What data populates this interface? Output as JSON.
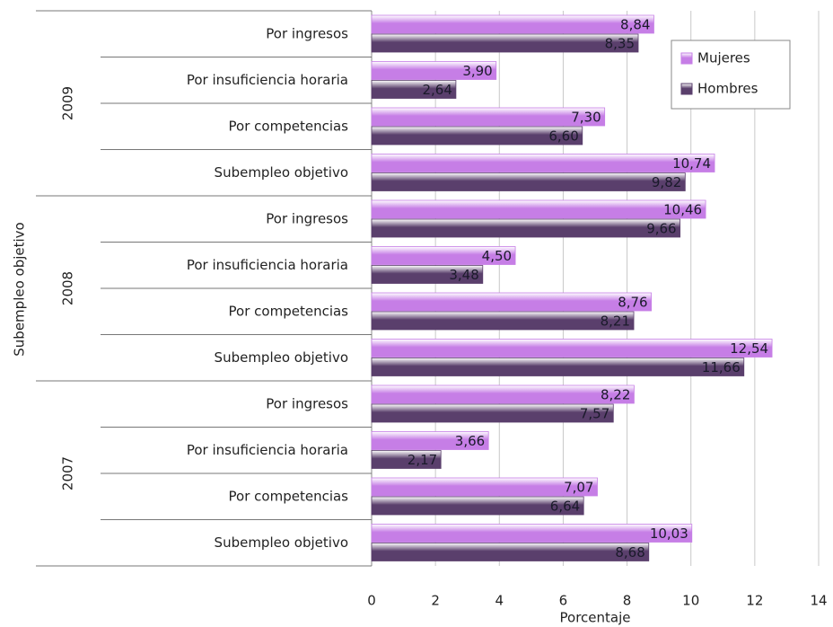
{
  "chart_data": {
    "type": "hbar",
    "y_label": "Subempleo objetivo",
    "x_label": "Porcentaje",
    "groups": [
      "2009",
      "2008",
      "2007"
    ],
    "categories": [
      "Por ingresos",
      "Por insuficiencia horaria",
      "Por competencias",
      "Subempleo objetivo",
      "Por ingresos",
      "Por insuficiencia horaria",
      "Por competencias",
      "Subempleo objetivo",
      "Por ingresos",
      "Por insuficiencia horaria",
      "Por competencias",
      "Subempleo objetivo"
    ],
    "series": [
      {
        "name": "Mujeres",
        "color": "#c67ee6",
        "values": [
          8.84,
          3.9,
          7.3,
          10.74,
          10.46,
          4.5,
          8.76,
          12.54,
          8.22,
          3.66,
          7.07,
          10.03
        ],
        "value_labels": [
          "8,84",
          "3,90",
          "7,30",
          "10,74",
          "10,46",
          "4,50",
          "8,76",
          "12,54",
          "8,22",
          "3,66",
          "7,07",
          "10,03"
        ]
      },
      {
        "name": "Hombres",
        "color": "#5a3f6c",
        "values": [
          8.35,
          2.64,
          6.6,
          9.82,
          9.66,
          3.48,
          8.21,
          11.66,
          7.57,
          2.17,
          6.64,
          8.68
        ],
        "value_labels": [
          "8,35",
          "2,64",
          "6,60",
          "9,82",
          "9,66",
          "3,48",
          "8,21",
          "11,66",
          "7,57",
          "2,17",
          "6,64",
          "8,68"
        ]
      }
    ],
    "xlim": [
      0,
      14
    ],
    "xticks": [
      0,
      2,
      4,
      6,
      8,
      10,
      12,
      14
    ],
    "grid": true,
    "legend": "top-right"
  }
}
